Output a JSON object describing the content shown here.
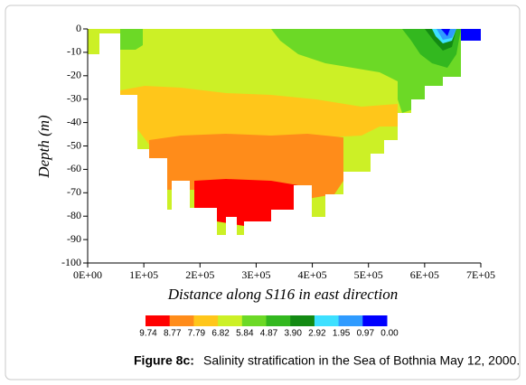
{
  "chart_data": {
    "type": "contour",
    "xlabel": "Distance along S116 in east direction",
    "ylabel": "Depth (m)",
    "xlim": [
      0,
      700000
    ],
    "ylim": [
      -100,
      0
    ],
    "xticks": [
      {
        "value": 0,
        "label": "0E+00"
      },
      {
        "value": 100000,
        "label": "1E+05"
      },
      {
        "value": 200000,
        "label": "2E+05"
      },
      {
        "value": 300000,
        "label": "3E+05"
      },
      {
        "value": 400000,
        "label": "4E+05"
      },
      {
        "value": 500000,
        "label": "5E+05"
      },
      {
        "value": 600000,
        "label": "6E+05"
      },
      {
        "value": 700000,
        "label": "7E+05"
      }
    ],
    "yticks": [
      0,
      -10,
      -20,
      -30,
      -40,
      -50,
      -60,
      -70,
      -80,
      -90,
      -100
    ],
    "levels": [
      9.74,
      8.77,
      7.79,
      6.82,
      5.84,
      4.87,
      3.9,
      2.92,
      1.95,
      0.97,
      0
    ],
    "level_labels": [
      "9.74",
      "8.77",
      "7.79",
      "6.82",
      "5.84",
      "4.87",
      "3.90",
      "2.92",
      "1.95",
      "0.97",
      "0.00"
    ],
    "colors": [
      "#ff0000",
      "#ff8c1a",
      "#ffc61a",
      "#ccf026",
      "#6cd926",
      "#33b81f",
      "#138a13",
      "#3de0ff",
      "#2f9bff",
      "#0000ff"
    ],
    "caption_label": "Figure 8c:",
    "caption": "Salinity stratification in the Sea of Bothnia May 12, 2000."
  }
}
